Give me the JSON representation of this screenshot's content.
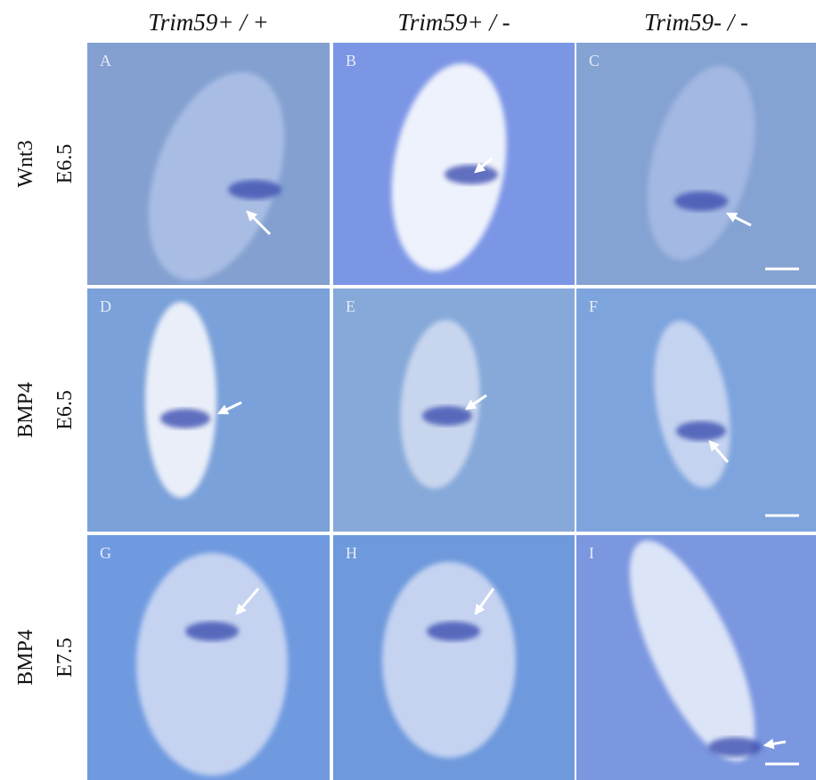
{
  "column_headers": [
    "Trim59+ / +",
    "Trim59+ / -",
    "Trim59- / -"
  ],
  "rows": [
    {
      "gene": "Wnt3",
      "stage": "E6.5",
      "panels": [
        "A",
        "B",
        "C"
      ]
    },
    {
      "gene": "BMP4",
      "stage": "E6.5",
      "panels": [
        "D",
        "E",
        "F"
      ]
    },
    {
      "gene": "BMP4",
      "stage": "E7.5",
      "panels": [
        "G",
        "H",
        "I"
      ]
    }
  ]
}
